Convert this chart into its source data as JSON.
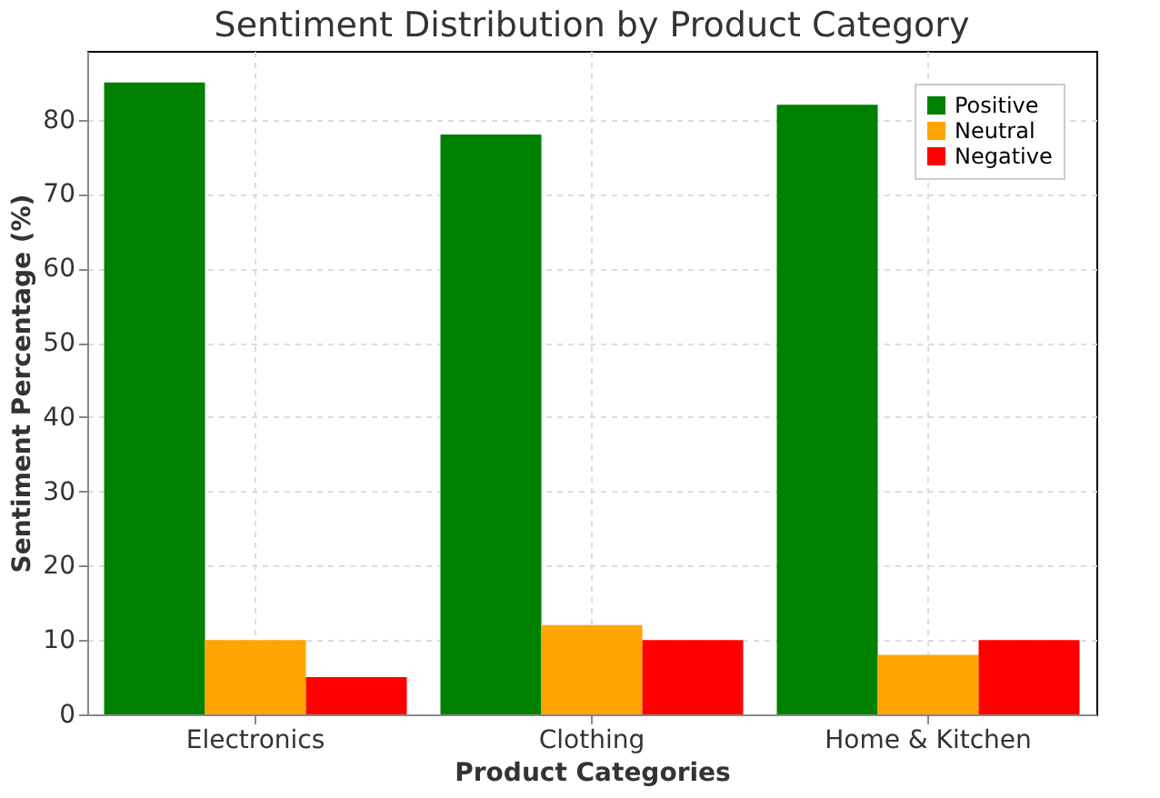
{
  "chart_data": {
    "type": "bar",
    "title": "Sentiment Distribution by Product Category",
    "xlabel": "Product Categories",
    "ylabel": "Sentiment Percentage (%)",
    "categories": [
      "Electronics",
      "Clothing",
      "Home & Kitchen"
    ],
    "series": [
      {
        "name": "Positive",
        "color": "#008000",
        "values": [
          85,
          78,
          82
        ]
      },
      {
        "name": "Neutral",
        "color": "#ffa500",
        "values": [
          10,
          12,
          8
        ]
      },
      {
        "name": "Negative",
        "color": "#ff0000",
        "values": [
          5,
          10,
          10
        ]
      }
    ],
    "ylim": [
      0,
      89.25
    ],
    "yticks": [
      0,
      10,
      20,
      30,
      40,
      50,
      60,
      70,
      80
    ],
    "grid": true,
    "legend": "top right"
  }
}
